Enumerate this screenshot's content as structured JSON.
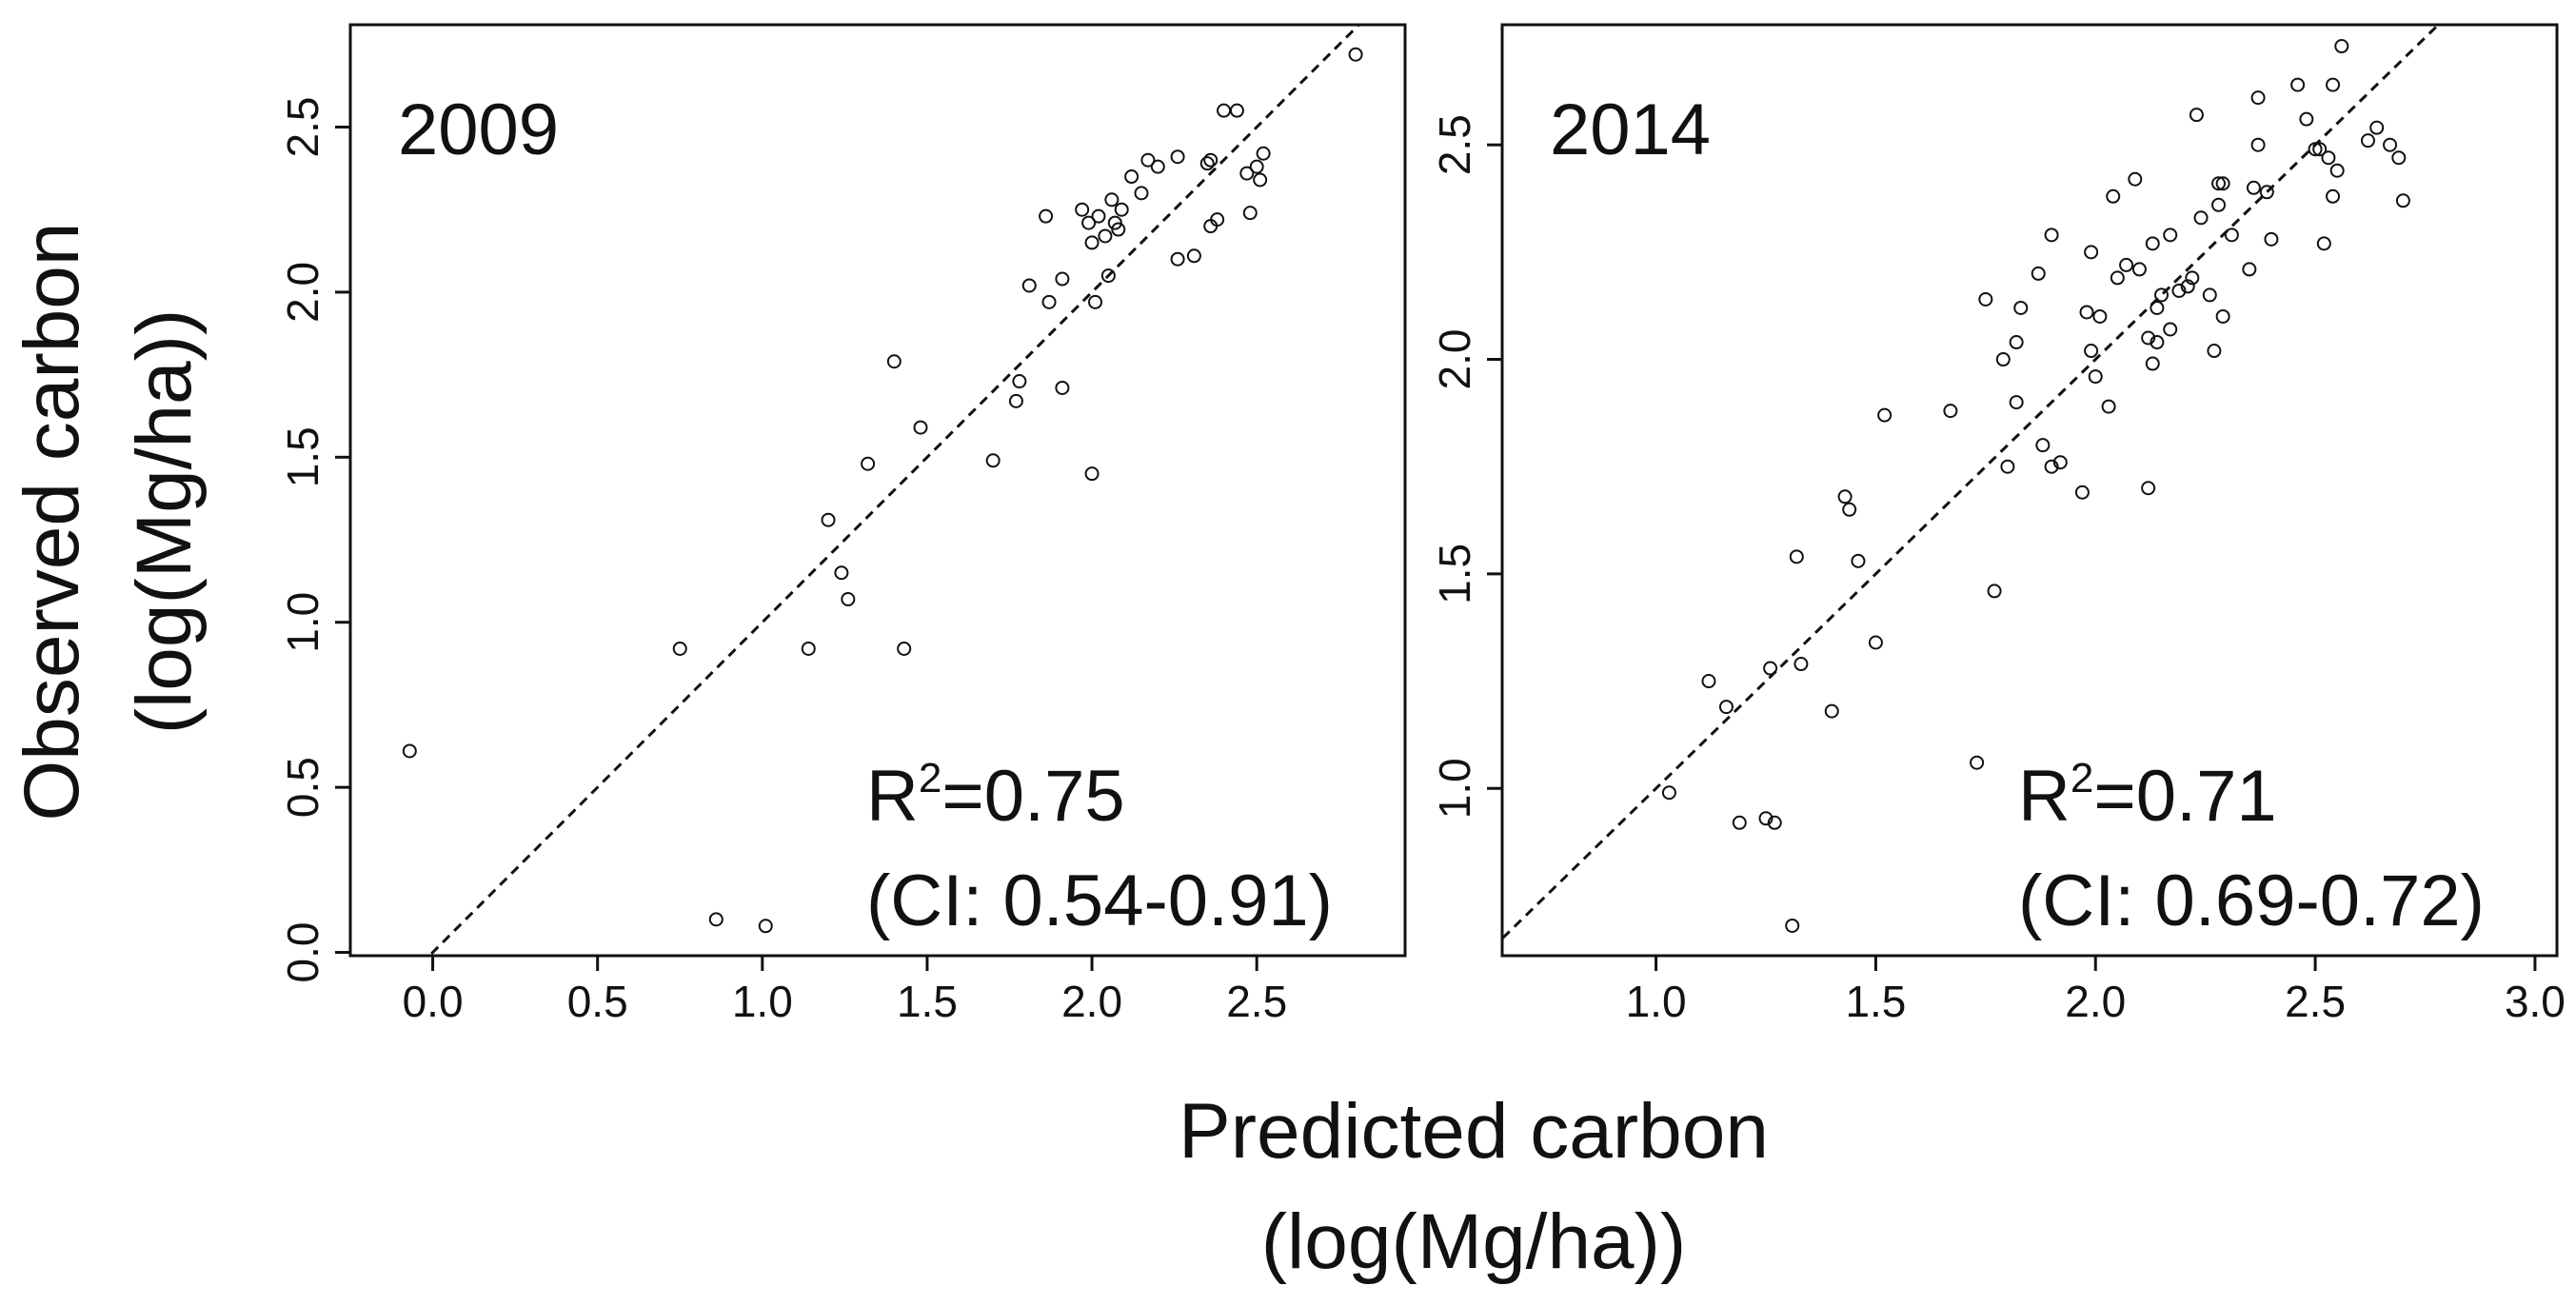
{
  "figure": {
    "y_axis_title_line1": "Observed carbon",
    "y_axis_title_line2": "(log(Mg/ha))",
    "x_axis_title_line1": "Predicted carbon",
    "x_axis_title_line2": "(log(Mg/ha))"
  },
  "colors": {
    "ink": "#111111",
    "background": "#ffffff"
  },
  "panels": [
    {
      "year": "2009",
      "r2_label": "R",
      "r2_sup": "2",
      "r2_value": "=0.75",
      "ci": "(CI: 0.54-0.91)",
      "x_ticks": [
        "0.0",
        "0.5",
        "1.0",
        "1.5",
        "2.0",
        "2.5"
      ],
      "y_ticks": [
        "0.0",
        "0.5",
        "1.0",
        "1.5",
        "2.0",
        "2.5"
      ]
    },
    {
      "year": "2014",
      "r2_label": "R",
      "r2_sup": "2",
      "r2_value": "=0.71",
      "ci": "(CI: 0.69-0.72)",
      "x_ticks": [
        "1.0",
        "1.5",
        "2.0",
        "2.5",
        "3.0"
      ],
      "y_ticks": [
        "1.0",
        "1.5",
        "2.0",
        "2.5"
      ]
    }
  ],
  "chart_data": [
    {
      "type": "scatter",
      "title": "2009",
      "xlabel": "Predicted carbon (log(Mg/ha))",
      "ylabel": "Observed carbon (log(Mg/ha))",
      "xlim": [
        -0.25,
        2.95
      ],
      "ylim": [
        -0.01,
        2.81
      ],
      "x_ticks": [
        0.0,
        0.5,
        1.0,
        1.5,
        2.0,
        2.5
      ],
      "y_ticks": [
        0.0,
        0.5,
        1.0,
        1.5,
        2.0,
        2.5
      ],
      "reference_line": "1:1 dashed",
      "annotations": [
        "R^2=0.75",
        "(CI: 0.54-0.91)"
      ],
      "points": [
        [
          -0.07,
          0.61
        ],
        [
          0.75,
          0.92
        ],
        [
          0.86,
          0.1
        ],
        [
          1.01,
          0.08
        ],
        [
          1.14,
          0.92
        ],
        [
          1.2,
          1.31
        ],
        [
          1.24,
          1.15
        ],
        [
          1.26,
          1.07
        ],
        [
          1.32,
          1.48
        ],
        [
          1.4,
          1.79
        ],
        [
          1.43,
          0.92
        ],
        [
          1.48,
          1.59
        ],
        [
          1.7,
          1.49
        ],
        [
          1.77,
          1.67
        ],
        [
          1.78,
          1.73
        ],
        [
          1.81,
          2.02
        ],
        [
          1.86,
          2.23
        ],
        [
          1.87,
          1.97
        ],
        [
          1.91,
          2.04
        ],
        [
          1.91,
          1.71
        ],
        [
          1.97,
          2.25
        ],
        [
          1.99,
          2.21
        ],
        [
          2.0,
          1.45
        ],
        [
          2.0,
          2.15
        ],
        [
          2.01,
          1.97
        ],
        [
          2.02,
          2.23
        ],
        [
          2.04,
          2.17
        ],
        [
          2.05,
          2.05
        ],
        [
          2.06,
          2.28
        ],
        [
          2.07,
          2.21
        ],
        [
          2.08,
          2.19
        ],
        [
          2.09,
          2.25
        ],
        [
          2.12,
          2.35
        ],
        [
          2.15,
          2.3
        ],
        [
          2.17,
          2.4
        ],
        [
          2.2,
          2.38
        ],
        [
          2.26,
          2.41
        ],
        [
          2.26,
          2.1
        ],
        [
          2.31,
          2.11
        ],
        [
          2.35,
          2.39
        ],
        [
          2.36,
          2.2
        ],
        [
          2.36,
          2.4
        ],
        [
          2.38,
          2.22
        ],
        [
          2.4,
          2.55
        ],
        [
          2.44,
          2.55
        ],
        [
          2.47,
          2.36
        ],
        [
          2.48,
          2.24
        ],
        [
          2.5,
          2.38
        ],
        [
          2.51,
          2.34
        ],
        [
          2.52,
          2.42
        ],
        [
          2.8,
          2.72
        ]
      ]
    },
    {
      "type": "scatter",
      "title": "2014",
      "xlabel": "Predicted carbon (log(Mg/ha))",
      "ylabel": "Observed carbon (log(Mg/ha))",
      "xlim": [
        0.65,
        3.05
      ],
      "ylim": [
        0.61,
        2.78
      ],
      "x_ticks": [
        1.0,
        1.5,
        2.0,
        2.5,
        3.0
      ],
      "y_ticks": [
        1.0,
        1.5,
        2.0,
        2.5
      ],
      "reference_line": "1:1 dashed",
      "annotations": [
        "R^2=0.71",
        "(CI: 0.69-0.72)"
      ],
      "points": [
        [
          1.03,
          0.99
        ],
        [
          1.12,
          1.25
        ],
        [
          1.16,
          1.19
        ],
        [
          1.19,
          0.92
        ],
        [
          1.25,
          0.93
        ],
        [
          1.26,
          1.28
        ],
        [
          1.27,
          0.92
        ],
        [
          1.31,
          0.68
        ],
        [
          1.32,
          1.54
        ],
        [
          1.33,
          1.29
        ],
        [
          1.4,
          1.18
        ],
        [
          1.43,
          1.68
        ],
        [
          1.44,
          1.65
        ],
        [
          1.46,
          1.53
        ],
        [
          1.5,
          1.34
        ],
        [
          1.52,
          1.87
        ],
        [
          1.67,
          1.88
        ],
        [
          1.73,
          1.06
        ],
        [
          1.75,
          2.14
        ],
        [
          1.77,
          1.46
        ],
        [
          1.79,
          2.0
        ],
        [
          1.8,
          1.75
        ],
        [
          1.82,
          2.04
        ],
        [
          1.82,
          1.9
        ],
        [
          1.83,
          2.12
        ],
        [
          1.87,
          2.2
        ],
        [
          1.88,
          1.8
        ],
        [
          1.9,
          2.29
        ],
        [
          1.9,
          1.75
        ],
        [
          1.92,
          1.76
        ],
        [
          1.97,
          1.69
        ],
        [
          1.98,
          2.11
        ],
        [
          1.99,
          2.25
        ],
        [
          1.99,
          2.02
        ],
        [
          2.0,
          1.96
        ],
        [
          2.01,
          2.1
        ],
        [
          2.03,
          1.89
        ],
        [
          2.04,
          2.38
        ],
        [
          2.05,
          2.19
        ],
        [
          2.07,
          2.22
        ],
        [
          2.09,
          2.42
        ],
        [
          2.1,
          2.21
        ],
        [
          2.12,
          2.05
        ],
        [
          2.12,
          1.7
        ],
        [
          2.13,
          1.99
        ],
        [
          2.13,
          2.27
        ],
        [
          2.14,
          2.04
        ],
        [
          2.14,
          2.12
        ],
        [
          2.15,
          2.15
        ],
        [
          2.17,
          2.07
        ],
        [
          2.17,
          2.29
        ],
        [
          2.19,
          2.16
        ],
        [
          2.21,
          2.17
        ],
        [
          2.22,
          2.19
        ],
        [
          2.23,
          2.57
        ],
        [
          2.24,
          2.33
        ],
        [
          2.26,
          2.15
        ],
        [
          2.27,
          2.02
        ],
        [
          2.28,
          2.36
        ],
        [
          2.28,
          2.41
        ],
        [
          2.29,
          2.41
        ],
        [
          2.29,
          2.1
        ],
        [
          2.31,
          2.29
        ],
        [
          2.35,
          2.21
        ],
        [
          2.36,
          2.4
        ],
        [
          2.37,
          2.5
        ],
        [
          2.37,
          2.61
        ],
        [
          2.39,
          2.39
        ],
        [
          2.4,
          2.28
        ],
        [
          2.46,
          2.64
        ],
        [
          2.48,
          2.56
        ],
        [
          2.5,
          2.49
        ],
        [
          2.51,
          2.49
        ],
        [
          2.52,
          2.27
        ],
        [
          2.53,
          2.47
        ],
        [
          2.54,
          2.38
        ],
        [
          2.54,
          2.64
        ],
        [
          2.55,
          2.44
        ],
        [
          2.56,
          2.73
        ],
        [
          2.62,
          2.51
        ],
        [
          2.64,
          2.54
        ],
        [
          2.67,
          2.5
        ],
        [
          2.69,
          2.47
        ],
        [
          2.7,
          2.37
        ]
      ]
    }
  ]
}
